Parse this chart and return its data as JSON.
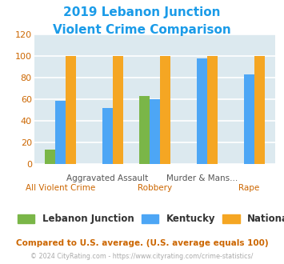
{
  "title_line1": "2019 Lebanon Junction",
  "title_line2": "Violent Crime Comparison",
  "title_color": "#1a9be8",
  "categories": [
    "All Violent Crime",
    "Aggravated Assault",
    "Robbery",
    "Murder & Mans...",
    "Rape"
  ],
  "series": {
    "Lebanon Junction": [
      13,
      0,
      63,
      0,
      0
    ],
    "Kentucky": [
      58,
      52,
      60,
      98,
      83
    ],
    "National": [
      100,
      100,
      100,
      100,
      100
    ]
  },
  "colors": {
    "Lebanon Junction": "#7ab648",
    "Kentucky": "#4da6f5",
    "National": "#f5a623"
  },
  "ylim": [
    0,
    120
  ],
  "yticks": [
    0,
    20,
    40,
    60,
    80,
    100,
    120
  ],
  "bar_width": 0.22,
  "bg_color": "#dce9ef",
  "grid_color": "#ffffff",
  "legend_labels": [
    "Lebanon Junction",
    "Kentucky",
    "National"
  ],
  "footnote1": "Compared to U.S. average. (U.S. average equals 100)",
  "footnote2": "© 2024 CityRating.com - https://www.cityrating.com/crime-statistics/",
  "footnote1_color": "#cc6600",
  "footnote2_color": "#aaaaaa",
  "tick_label_color": "#cc6600",
  "top_label_color": "#555555",
  "bottom_label_color": "#cc6600"
}
